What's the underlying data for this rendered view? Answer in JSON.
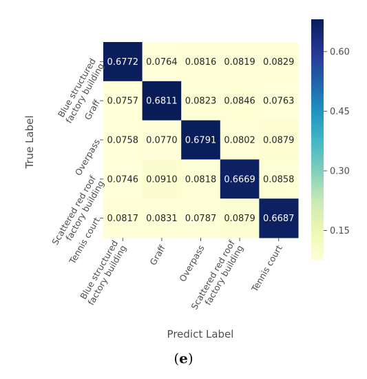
{
  "caption": {
    "open": "(",
    "letter": "e",
    "close": ")"
  },
  "chart_data": {
    "type": "heatmap",
    "xlabel": "Predict Label",
    "ylabel": "True Label",
    "x_categories": [
      "Blue structured factory building",
      "Graff",
      "Overpass",
      "Scattered red roof factory building",
      "Tennis court"
    ],
    "y_categories": [
      "Blue structured factory building",
      "Graff",
      "Overpass",
      "Scattered red roof factory building",
      "Tennis court"
    ],
    "x_tick_lines": [
      [
        "Blue structured",
        "factory building"
      ],
      [
        "Graff"
      ],
      [
        "Overpass"
      ],
      [
        "Scattered red roof",
        "factory building"
      ],
      [
        "Tennis court"
      ]
    ],
    "y_tick_lines": [
      [
        "Blue structured",
        "factory building"
      ],
      [
        "Graff"
      ],
      [
        "Overpass"
      ],
      [
        "Scattered red roof",
        "factory building"
      ],
      [
        "Tennis court"
      ]
    ],
    "values": [
      [
        0.6772,
        0.0764,
        0.0816,
        0.0819,
        0.0829
      ],
      [
        0.0757,
        0.6811,
        0.0823,
        0.0846,
        0.0763
      ],
      [
        0.0758,
        0.077,
        0.6791,
        0.0802,
        0.0879
      ],
      [
        0.0746,
        0.091,
        0.0818,
        0.6669,
        0.0858
      ],
      [
        0.0817,
        0.0831,
        0.0787,
        0.0879,
        0.6687
      ]
    ],
    "colormap": "YlGnBu",
    "colorbar": {
      "range": [
        0.0746,
        0.6811
      ],
      "ticks": [
        0.15,
        0.3,
        0.45,
        0.6
      ],
      "tick_labels": [
        "0.15",
        "0.30",
        "0.45",
        "0.60"
      ]
    },
    "annotation_colors": {
      "dark_cell": "#ffffff",
      "light_cell": "#262626"
    }
  }
}
